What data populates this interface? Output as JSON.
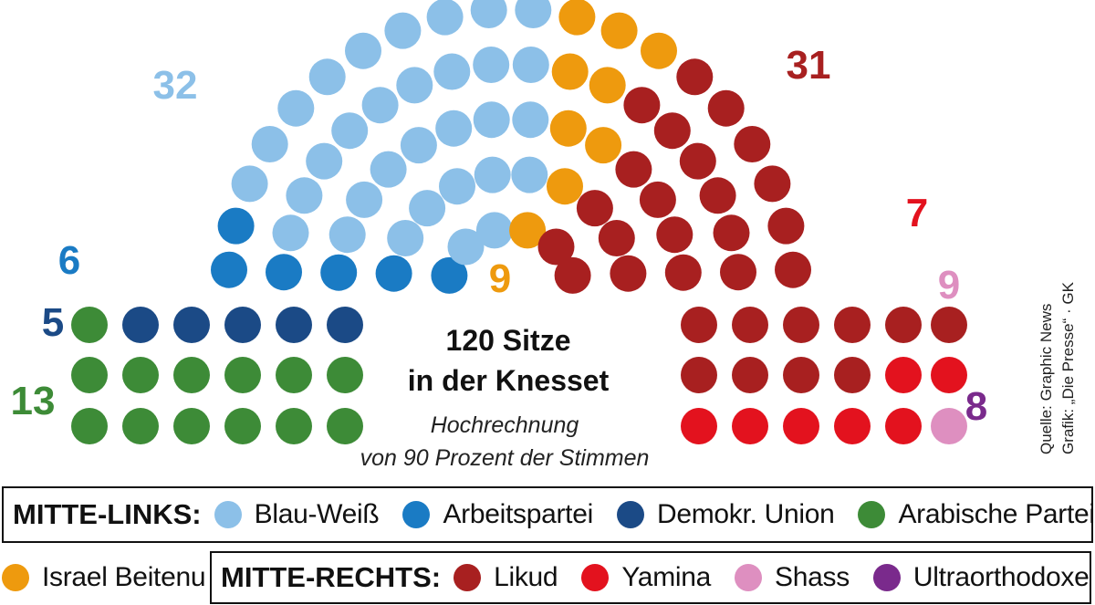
{
  "chart_data": {
    "type": "parliament",
    "title_line1": "120 Sitze",
    "title_line2": "in der Knesset",
    "subtitle_line1": "Hochrechnung",
    "subtitle_line2": "von 90 Prozent der Stimmen",
    "source_line1": "Quelle: Graphic News",
    "source_line2": "Grafik: „Die Presse“ · GK",
    "total_seats": 120,
    "parties": [
      {
        "name": "Arabische Parteien",
        "seats": 13,
        "color": "#3d8b37"
      },
      {
        "name": "Demokr. Union",
        "seats": 5,
        "color": "#1b4a86"
      },
      {
        "name": "Arbeitspartei",
        "seats": 6,
        "color": "#1a7bc4"
      },
      {
        "name": "Blau-Weiß",
        "seats": 32,
        "color": "#8cc0e8"
      },
      {
        "name": "Israel Beitenu",
        "seats": 9,
        "color": "#ee9a0e"
      },
      {
        "name": "Likud",
        "seats": 31,
        "color": "#a82020"
      },
      {
        "name": "Yamina",
        "seats": 7,
        "color": "#e3121e"
      },
      {
        "name": "Shass",
        "seats": 9,
        "color": "#de8fc0"
      },
      {
        "name": "Ultraorthodoxe",
        "seats": 8,
        "color": "#7a2a8c"
      }
    ]
  },
  "legend": {
    "left_group_label": "MITTE-LINKS:",
    "right_group_label": "MITTE-RECHTS:",
    "left_items": [
      {
        "label": "Blau-Weiß",
        "color": "#8cc0e8"
      },
      {
        "label": "Arbeitspartei",
        "color": "#1a7bc4"
      },
      {
        "label": "Demokr. Union",
        "color": "#1b4a86"
      },
      {
        "label": "Arabische Parteien",
        "color": "#3d8b37"
      }
    ],
    "standalone_item": {
      "label": "Israel Beitenu",
      "color": "#ee9a0e"
    },
    "right_items": [
      {
        "label": "Likud",
        "color": "#a82020"
      },
      {
        "label": "Yamina",
        "color": "#e3121e"
      },
      {
        "label": "Shass",
        "color": "#de8fc0"
      },
      {
        "label": "Ultraorthodoxe",
        "color": "#7a2a8c"
      }
    ]
  }
}
